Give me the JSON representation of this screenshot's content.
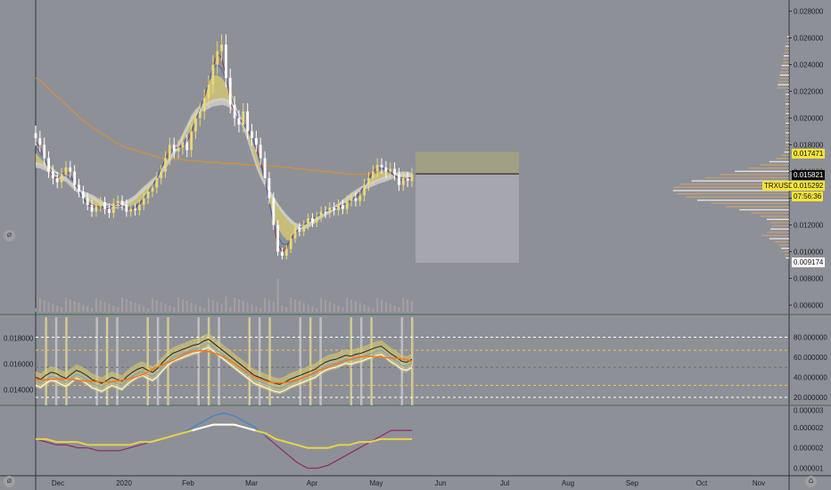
{
  "symbol_tag": "TRXUSD",
  "countdown": "07:56:36",
  "price_tags": {
    "level_high": "0.017471",
    "last_price": "0.015821",
    "symbol_price": "0.015292",
    "level_low": "0.009174"
  },
  "colors": {
    "background": "#8e9097",
    "up_candle": "#e8d87a",
    "down_candle": "#ffffff",
    "ribbon_yellow": "#d8cc70",
    "ribbon_white": "#d6d6d6",
    "ma_orange": "#d4903a",
    "ma_red": "#a4343c",
    "ma_blue": "#3c6cb4",
    "target_zone": "#a4a280",
    "stop_zone": "#a7a9b0",
    "macd_blue": "#3d8fd6",
    "macd_purple": "#8a2a6c",
    "macd_yellow": "#e6d34c"
  },
  "icons": {
    "top_left_button": "chart-tools-icon",
    "bottom_left_button": "chart-tools-icon",
    "bottom_right_button": "logo-icon"
  },
  "chart_data": [
    {
      "type": "candlestick",
      "title": "",
      "ylabel": "",
      "y_ticks": [
        "0.028000",
        "0.026000",
        "0.024000",
        "0.022000",
        "0.020000",
        "0.018000",
        "0.016000",
        "0.014000",
        "0.012000",
        "0.010000",
        "0.008000",
        "0.006000"
      ],
      "ylim": [
        0.0055,
        0.0285
      ],
      "x_ticks": [
        "Dec",
        "2020",
        "Feb",
        "Mar",
        "Apr",
        "May",
        "Jun",
        "Jul",
        "Aug",
        "Sep",
        "Oct",
        "Nov"
      ],
      "close": [
        0.0185,
        0.018,
        0.017,
        0.016,
        0.0155,
        0.0152,
        0.0158,
        0.0163,
        0.016,
        0.015,
        0.0145,
        0.014,
        0.0135,
        0.013,
        0.0134,
        0.0137,
        0.0132,
        0.0129,
        0.0136,
        0.0138,
        0.0135,
        0.013,
        0.0132,
        0.0131,
        0.0135,
        0.014,
        0.0145,
        0.0148,
        0.0155,
        0.016,
        0.017,
        0.018,
        0.0175,
        0.0178,
        0.0182,
        0.0176,
        0.019,
        0.02,
        0.0205,
        0.0215,
        0.0225,
        0.024,
        0.025,
        0.0255,
        0.023,
        0.021,
        0.02,
        0.0195,
        0.0205,
        0.019,
        0.0185,
        0.018,
        0.017,
        0.0155,
        0.014,
        0.012,
        0.01,
        0.0097,
        0.0102,
        0.011,
        0.0118,
        0.0115,
        0.012,
        0.0125,
        0.0122,
        0.0126,
        0.013,
        0.0129,
        0.0133,
        0.0131,
        0.0135,
        0.0132,
        0.0138,
        0.014,
        0.0138,
        0.0142,
        0.015,
        0.0155,
        0.016,
        0.0165,
        0.0163,
        0.016,
        0.0162,
        0.0158,
        0.015,
        0.0155,
        0.0153,
        0.0158
      ],
      "moving_average_slow": [
        0.023,
        0.0228,
        0.0225,
        0.0222,
        0.0219,
        0.0216,
        0.0213,
        0.021,
        0.0207,
        0.0204,
        0.0201,
        0.0198,
        0.0196,
        0.0193,
        0.0191,
        0.0189,
        0.0187,
        0.0185,
        0.0183,
        0.0181,
        0.0179,
        0.0178,
        0.0177,
        0.0176,
        0.0175,
        0.0174,
        0.0173,
        0.0172,
        0.0171,
        0.017,
        0.017,
        0.017,
        0.0169,
        0.0169,
        0.0169,
        0.0168,
        0.0168,
        0.0168,
        0.0168,
        0.0167,
        0.0167,
        0.0167,
        0.0167,
        0.0166,
        0.0166,
        0.0166,
        0.0166,
        0.0166,
        0.0165,
        0.0165,
        0.0165,
        0.0165,
        0.0165,
        0.0165,
        0.0164,
        0.0164,
        0.0164,
        0.0163,
        0.0163,
        0.0163,
        0.0162,
        0.0162,
        0.0162,
        0.0161,
        0.0161,
        0.0161,
        0.016,
        0.016,
        0.016,
        0.0159,
        0.0159,
        0.0159,
        0.0158,
        0.0158,
        0.0158,
        0.0158,
        0.0158,
        0.0158,
        0.0158,
        0.0158,
        0.0158,
        0.0158,
        0.0158,
        0.0158,
        0.0158,
        0.0158,
        0.0158,
        0.0158
      ],
      "position_tool": {
        "entry": 0.015821,
        "target": 0.017471,
        "stop": 0.009174
      },
      "volume_profile_peak": 0.0146
    },
    {
      "type": "line",
      "title": "",
      "y_ticks": [
        "0.018000",
        "0.016000",
        "0.014000"
      ],
      "right_ticks": [
        "80.000000",
        "60.000000",
        "40.000000",
        "20.000000"
      ],
      "ylim": [
        0.0128,
        0.0196
      ],
      "right_ylim": [
        12,
        100
      ],
      "reference_levels": [
        80,
        67,
        50,
        32,
        20
      ],
      "oscillator": [
        40,
        38,
        42,
        45,
        44,
        41,
        39,
        43,
        47,
        45,
        42,
        38,
        36,
        34,
        37,
        40,
        38,
        36,
        41,
        45,
        48,
        50,
        47,
        45,
        49,
        55,
        60,
        64,
        66,
        68,
        70,
        72,
        73,
        76,
        78,
        74,
        70,
        66,
        62,
        58,
        54,
        50,
        46,
        42,
        40,
        38,
        36,
        34,
        33,
        35,
        38,
        40,
        42,
        44,
        46,
        48,
        52,
        55,
        57,
        58,
        60,
        62,
        61,
        63,
        64,
        66,
        68,
        70,
        71,
        67,
        63,
        60,
        56,
        55,
        58
      ]
    },
    {
      "type": "line",
      "title": "",
      "right_ticks": [
        "0.000003",
        "0.000002",
        "0.000002",
        "0.000001"
      ],
      "ylim": [
        8e-07,
        3.1e-06
      ],
      "macd_line": [
        2e-06,
        1.9e-06,
        1.8e-06,
        1.8e-06,
        1.7e-06,
        1.7e-06,
        1.6e-06,
        1.6e-06,
        1.6e-06,
        1.7e-06,
        1.8e-06,
        1.9e-06,
        2e-06,
        2.1e-06,
        2.2e-06,
        2.4e-06,
        2.6e-06,
        2.8e-06,
        2.9e-06,
        2.8e-06,
        2.6e-06,
        2.4e-06,
        2.1e-06,
        1.8e-06,
        1.5e-06,
        1.2e-06,
        1e-06,
        1e-06,
        1.1e-06,
        1.3e-06,
        1.5e-06,
        1.7e-06,
        1.9e-06,
        2.1e-06,
        2.3e-06,
        2.3e-06,
        2.3e-06
      ],
      "signal_line": [
        2e-06,
        2e-06,
        1.9e-06,
        1.9e-06,
        1.9e-06,
        1.8e-06,
        1.8e-06,
        1.8e-06,
        1.8e-06,
        1.8e-06,
        1.9e-06,
        1.9e-06,
        2e-06,
        2.1e-06,
        2.2e-06,
        2.3e-06,
        2.4e-06,
        2.5e-06,
        2.5e-06,
        2.5e-06,
        2.4e-06,
        2.3e-06,
        2.2e-06,
        2e-06,
        1.9e-06,
        1.8e-06,
        1.7e-06,
        1.7e-06,
        1.7e-06,
        1.8e-06,
        1.8e-06,
        1.9e-06,
        1.9e-06,
        2e-06,
        2e-06,
        2e-06,
        2e-06
      ]
    }
  ]
}
